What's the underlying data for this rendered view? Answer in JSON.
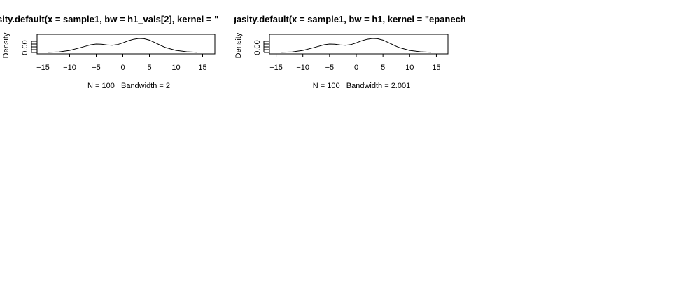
{
  "chart_data": [
    {
      "type": "line",
      "title": "sity.default(x = sample1, bw = h1_vals[2], kernel = \"",
      "xlabel": "N = 100   Bandwidth = 2",
      "ylabel": "Density",
      "xlim": [
        -16,
        17
      ],
      "ylim": [
        0,
        0.09
      ],
      "x_ticks": [
        -15,
        -10,
        -5,
        0,
        5,
        10,
        15
      ],
      "y_tick_labels": [
        "0.00"
      ],
      "grid": false,
      "series": [
        {
          "x": [
            -14,
            -12,
            -10,
            -8,
            -6,
            -5,
            -4,
            -3,
            -2,
            -1,
            0,
            1,
            2,
            3,
            4,
            5,
            6,
            7,
            8,
            10,
            12,
            14
          ],
          "y": [
            0.0008,
            0.003,
            0.012,
            0.028,
            0.045,
            0.049,
            0.048,
            0.044,
            0.042,
            0.046,
            0.056,
            0.068,
            0.077,
            0.082,
            0.08,
            0.072,
            0.058,
            0.043,
            0.029,
            0.012,
            0.004,
            0.0008
          ]
        }
      ]
    },
    {
      "type": "line",
      "title": "gasity.default(x = sample1, bw = h1, kernel = \"epanech",
      "xlabel": "N = 100   Bandwidth = 2.001",
      "ylabel": "Density",
      "xlim": [
        -16,
        17
      ],
      "ylim": [
        0,
        0.09
      ],
      "x_ticks": [
        -15,
        -10,
        -5,
        0,
        5,
        10,
        15
      ],
      "y_tick_labels": [
        "0.00"
      ],
      "grid": false,
      "series": [
        {
          "x": [
            -14,
            -12,
            -10,
            -8,
            -6,
            -5,
            -4,
            -3,
            -2,
            -1,
            0,
            1,
            2,
            3,
            4,
            5,
            6,
            7,
            8,
            10,
            12,
            14
          ],
          "y": [
            0.0008,
            0.003,
            0.012,
            0.028,
            0.045,
            0.049,
            0.048,
            0.044,
            0.042,
            0.046,
            0.056,
            0.068,
            0.077,
            0.082,
            0.08,
            0.072,
            0.058,
            0.043,
            0.029,
            0.012,
            0.004,
            0.0008
          ]
        }
      ]
    }
  ]
}
